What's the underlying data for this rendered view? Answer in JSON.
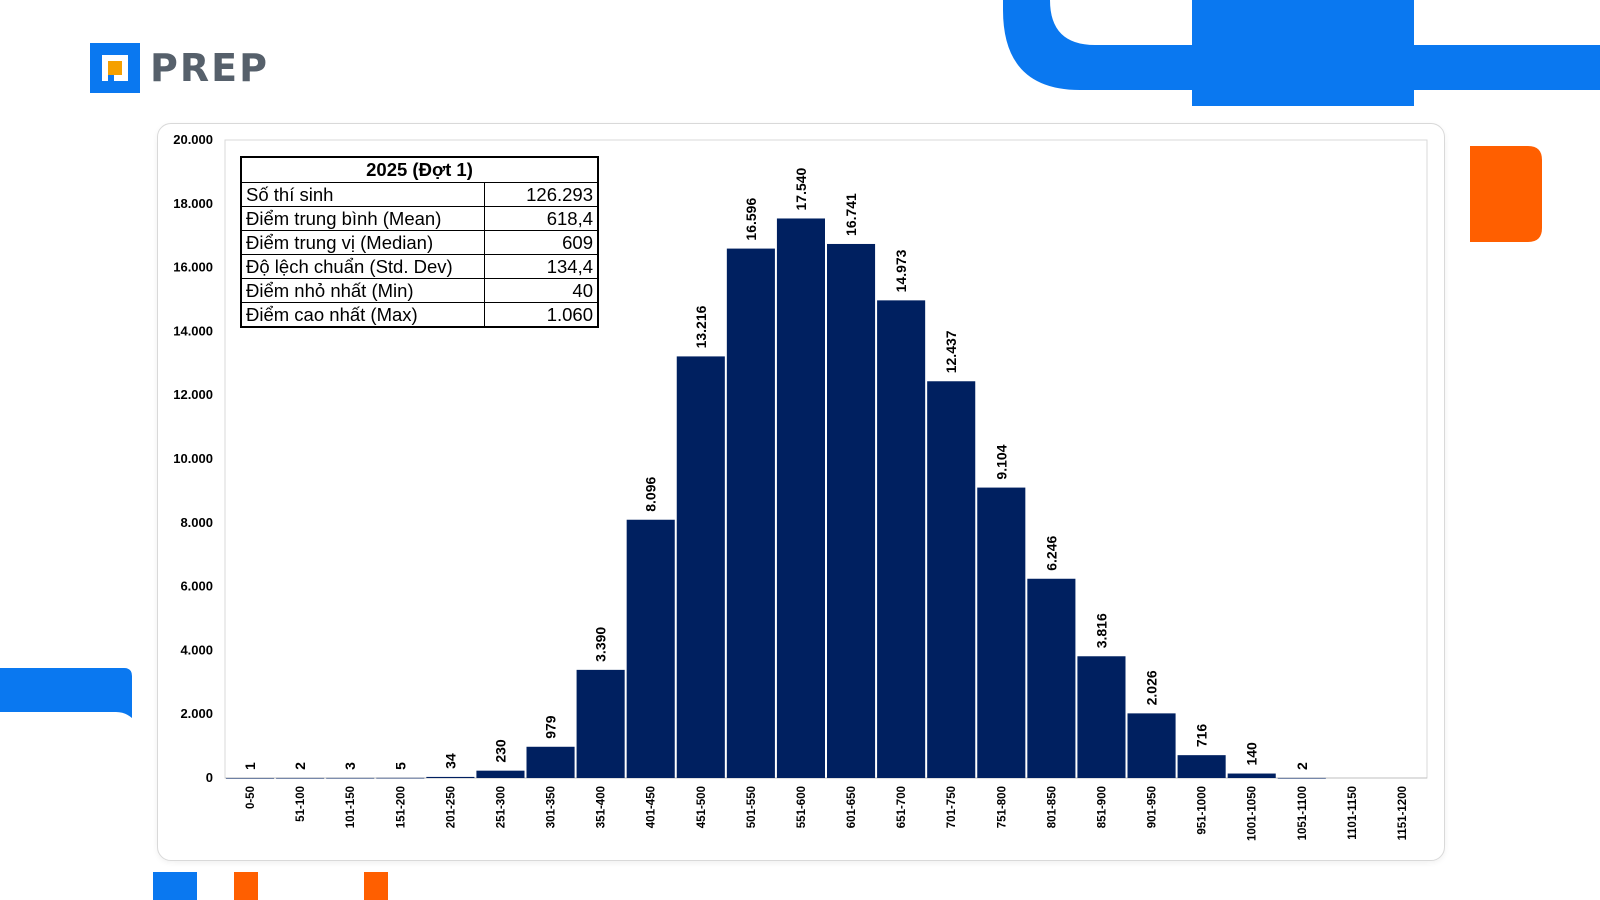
{
  "brand": {
    "name": "PREP",
    "colors": {
      "blue": "#0a78f0",
      "orange": "#ff5f00",
      "logo_text": "#56606b"
    }
  },
  "stats_table": {
    "title": "2025 (Đợt 1)",
    "rows": [
      {
        "label": "Số thí sinh",
        "value": "126.293"
      },
      {
        "label": "Điểm trung bình (Mean)",
        "value": "618,4"
      },
      {
        "label": "Điểm trung vị (Median)",
        "value": "609"
      },
      {
        "label": "Độ lệch chuẩn (Std. Dev)",
        "value": "134,4"
      },
      {
        "label": "Điểm nhỏ nhất (Min)",
        "value": "40"
      },
      {
        "label": "Điểm cao nhất (Max)",
        "value": "1.060"
      }
    ]
  },
  "chart_data": {
    "type": "bar",
    "title": "",
    "xlabel": "",
    "ylabel": "",
    "ylim": [
      0,
      20000
    ],
    "yticks": [
      0,
      2000,
      4000,
      6000,
      8000,
      10000,
      12000,
      14000,
      16000,
      18000,
      20000
    ],
    "ytick_labels": [
      "0",
      "2.000",
      "4.000",
      "6.000",
      "8.000",
      "10.000",
      "12.000",
      "14.000",
      "16.000",
      "18.000",
      "20.000"
    ],
    "categories": [
      "0-50",
      "51-100",
      "101-150",
      "151-200",
      "201-250",
      "251-300",
      "301-350",
      "351-400",
      "401-450",
      "451-500",
      "501-550",
      "551-600",
      "601-650",
      "651-700",
      "701-750",
      "751-800",
      "801-850",
      "851-900",
      "901-950",
      "951-1000",
      "1001-1050",
      "1051-1100",
      "1101-1150",
      "1151-1200"
    ],
    "values": [
      1,
      2,
      3,
      5,
      34,
      230,
      979,
      3390,
      8096,
      13216,
      16596,
      17540,
      16741,
      14973,
      12437,
      9104,
      6246,
      3816,
      2026,
      716,
      140,
      2,
      0,
      0
    ],
    "data_labels": [
      "1",
      "2",
      "3",
      "5",
      "34",
      "230",
      "979",
      "3.390",
      "8.096",
      "13.216",
      "16.596",
      "17.540",
      "16.741",
      "14.973",
      "12.437",
      "9.104",
      "6.246",
      "3.816",
      "2.026",
      "716",
      "140",
      "2",
      "",
      ""
    ],
    "bar_color": "#002060",
    "grid": false,
    "legend": "none"
  }
}
